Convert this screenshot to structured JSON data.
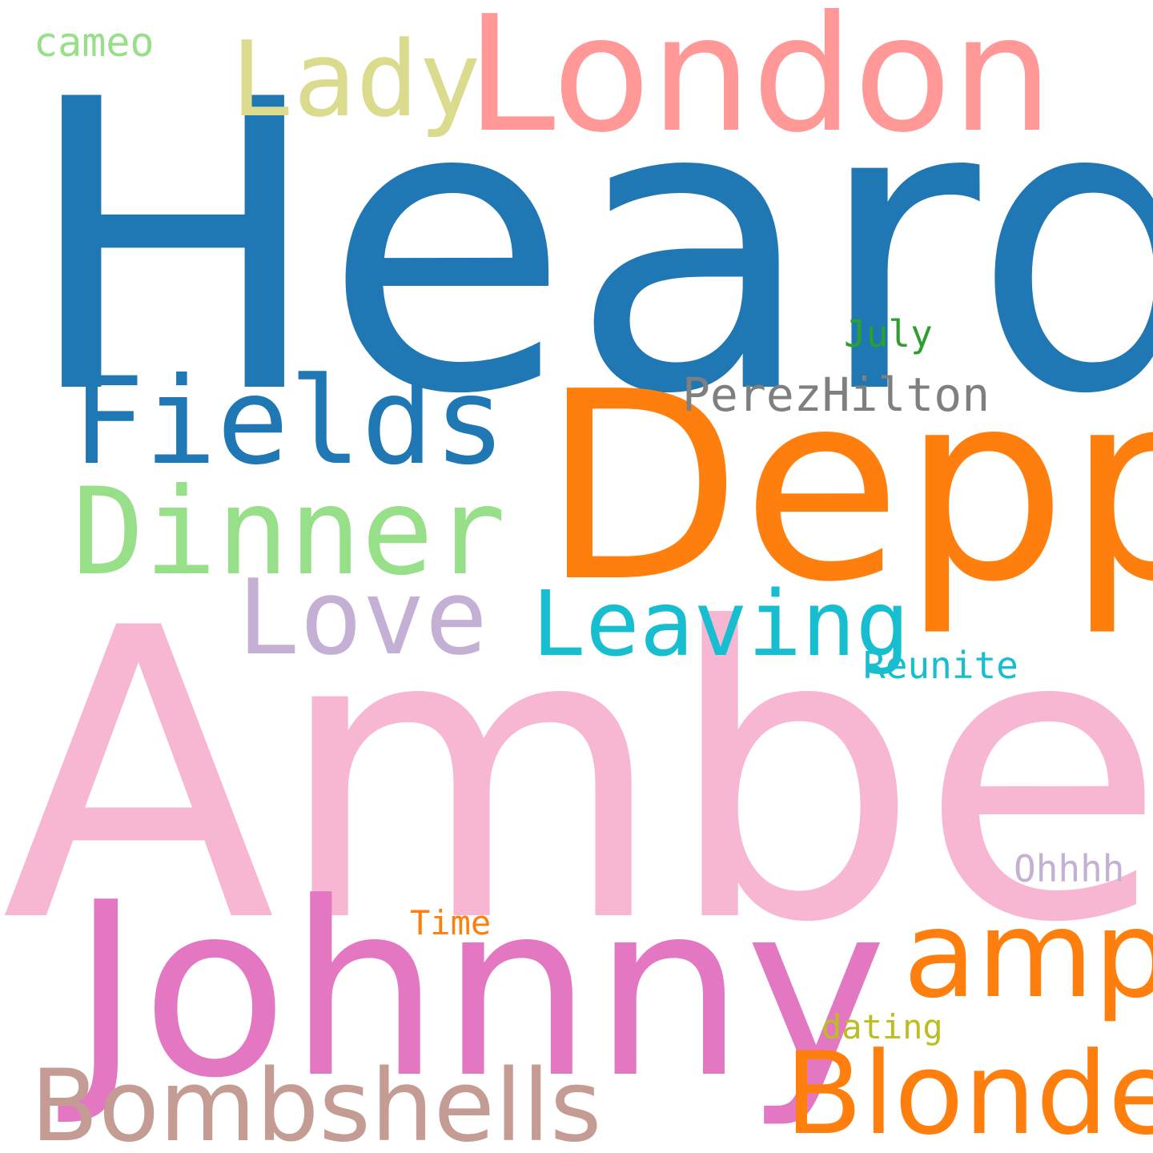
{
  "words": {
    "heard": {
      "text": "Heard",
      "color": "#1f77b4"
    },
    "amber": {
      "text": "Amber",
      "color": "#f7b6d2"
    },
    "depp": {
      "text": "Depp",
      "color": "#ff7f0e"
    },
    "johnny": {
      "text": "Johnny",
      "color": "#e377c2"
    },
    "london": {
      "text": "London",
      "color": "#ff9896"
    },
    "fields": {
      "text": "Fields",
      "color": "#1f77b4"
    },
    "dinner": {
      "text": "Dinner",
      "color": "#98df8a"
    },
    "blonde": {
      "text": "Blonde",
      "color": "#ff7f0e"
    },
    "bombshells": {
      "text": "Bombshells",
      "color": "#c49c94"
    },
    "amp": {
      "text": "amp",
      "color": "#ff7f0e"
    },
    "lady": {
      "text": "Lady",
      "color": "#dbdb8d"
    },
    "love": {
      "text": "Love",
      "color": "#c5b0d5"
    },
    "leaving": {
      "text": "Leaving",
      "color": "#17becf"
    },
    "perezhilton": {
      "text": "PerezHilton",
      "color": "#7f7f7f"
    },
    "reunite": {
      "text": "Reunite",
      "color": "#17becf"
    },
    "ohhhh": {
      "text": "Ohhhh",
      "color": "#c5b0d5"
    },
    "july": {
      "text": "July",
      "color": "#2ca02c"
    },
    "time": {
      "text": "Time",
      "color": "#ff7f0e"
    },
    "dating": {
      "text": "dating",
      "color": "#bcbd22"
    },
    "cameo": {
      "text": "cameo",
      "color": "#98df8a"
    }
  }
}
